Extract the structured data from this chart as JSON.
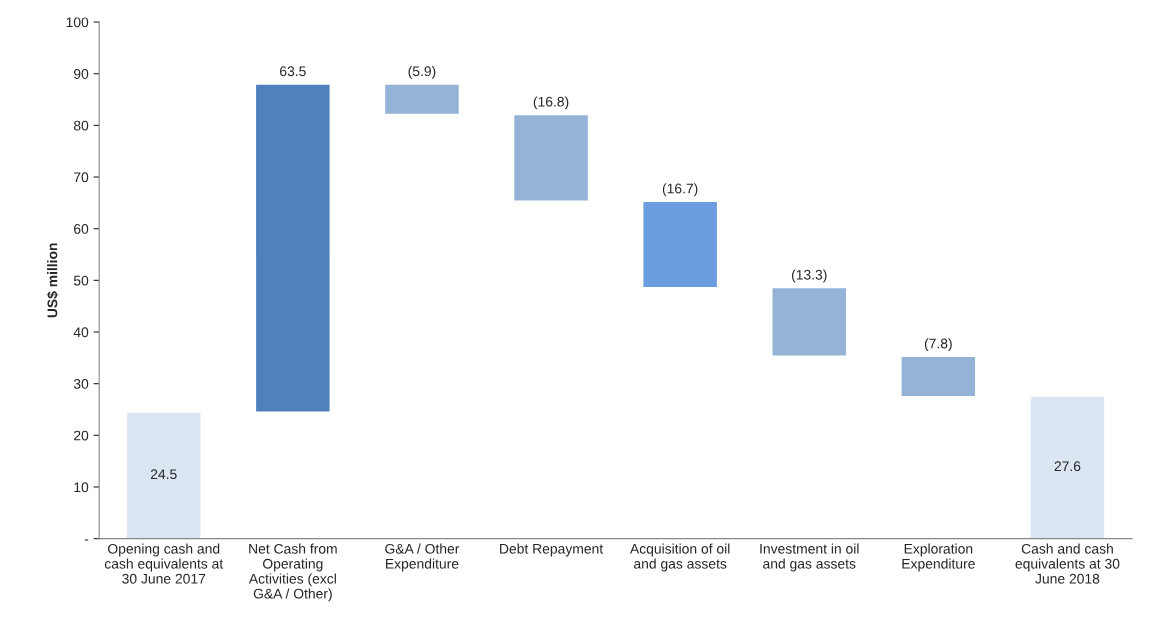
{
  "chart_data": {
    "type": "bar",
    "ylabel": "US$ million",
    "categories": [
      "Opening cash and cash equivalents at 30 June 2017",
      "Net Cash from Operating Activities (excl G&A / Other)",
      "G&A / Other Expenditure",
      "Debt Repayment",
      "Acquisition of oil and gas assets",
      "Investment in oil and gas assets",
      "Exploration Expenditure",
      "Cash and cash equivalents at 30 June 2018"
    ],
    "values": [
      24.5,
      63.5,
      -5.9,
      -16.8,
      -16.7,
      -13.3,
      -7.8,
      27.6
    ],
    "base": [
      0,
      24.5,
      88.0,
      82.1,
      65.3,
      48.6,
      35.3,
      0
    ],
    "colors": [
      "#dce6f2",
      "#4f81bd",
      "#95b3d7",
      "#95b3d7",
      "#6a9ede",
      "#95b3d7",
      "#95b3d7",
      "#dce6f2"
    ],
    "value_labels": [
      "24.5",
      "63.5",
      "(5.9)",
      "(16.8)",
      "(16.7)",
      "(13.3)",
      "(7.8)",
      "27.6"
    ],
    "ylim": [
      0,
      100
    ],
    "yticks": [
      {
        "value": 0,
        "label": "-"
      },
      10,
      20,
      30,
      40,
      50,
      60,
      70,
      80,
      90,
      100
    ],
    "grid": false
  }
}
